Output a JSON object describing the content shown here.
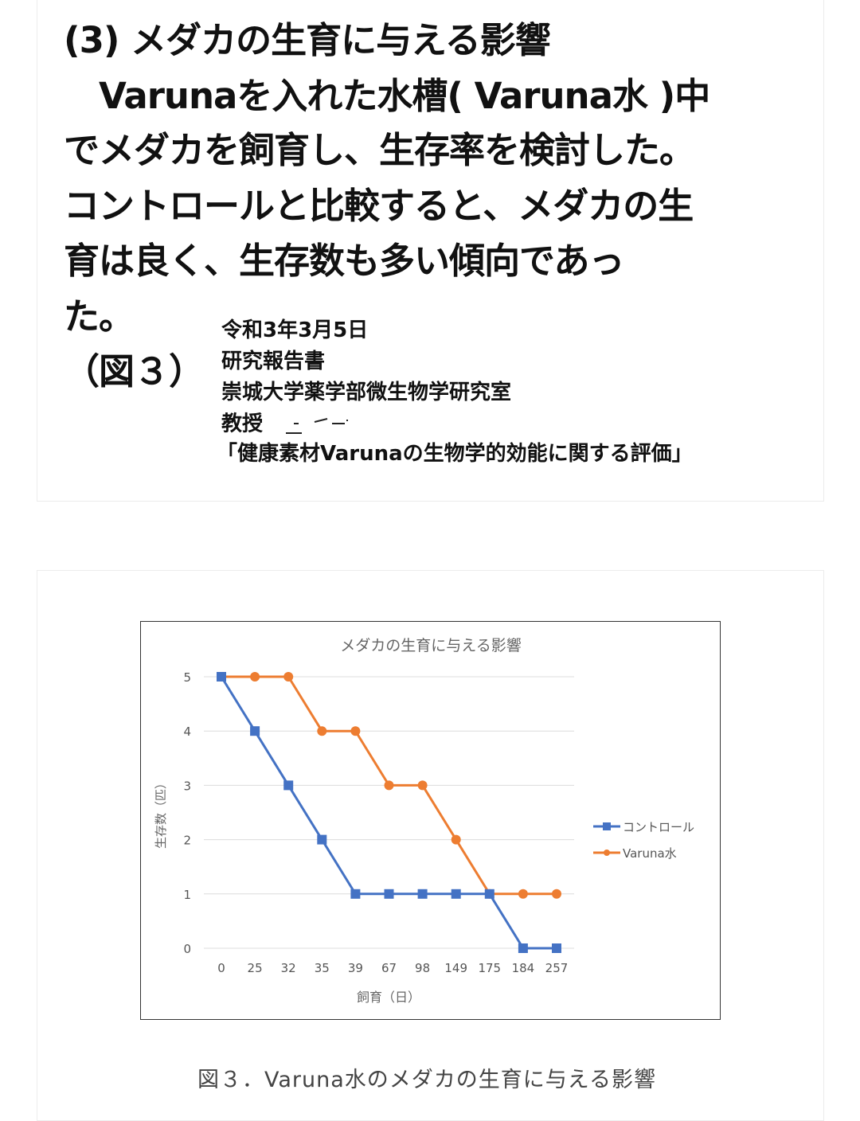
{
  "report": {
    "lines": [
      "(3) メダカの生育に与える影響",
      "　Varunaを入れた水槽( Varuna水 )中",
      "でメダカを飼育し、生存率を検討した。",
      "コントロールと比較すると、メダカの生",
      "育は良く、生存数も多い傾向であっ",
      "た。",
      "（図３）"
    ],
    "source": {
      "date": "令和3年3月5日",
      "doc_type": "研究報告書",
      "lab": "崇城大学薬学部微生物学研究室",
      "professor": "教授",
      "title": "「健康素材Varunaの生物学的効能に関する評価」"
    }
  },
  "figure_caption": "図３．Varuna水のメダカの生育に与える影響",
  "chart_data": {
    "type": "line",
    "title": "メダカの生育に与える影響",
    "xlabel": "飼育（日）",
    "ylabel": "生存数（匹）",
    "categories": [
      "0",
      "25",
      "32",
      "35",
      "39",
      "67",
      "98",
      "149",
      "175",
      "184",
      "257"
    ],
    "ylim": [
      0,
      5
    ],
    "yticks": [
      0,
      1,
      2,
      3,
      4,
      5
    ],
    "grid": true,
    "legend": "right",
    "series": [
      {
        "name": "コントロール",
        "values": [
          5,
          4,
          3,
          2,
          1,
          1,
          1,
          1,
          1,
          0,
          0
        ],
        "color": "#4472c4",
        "marker": "square"
      },
      {
        "name": "Varuna水",
        "values": [
          5,
          5,
          5,
          4,
          4,
          3,
          3,
          2,
          1,
          1,
          1
        ],
        "color": "#ed7d31",
        "marker": "circle"
      }
    ]
  }
}
